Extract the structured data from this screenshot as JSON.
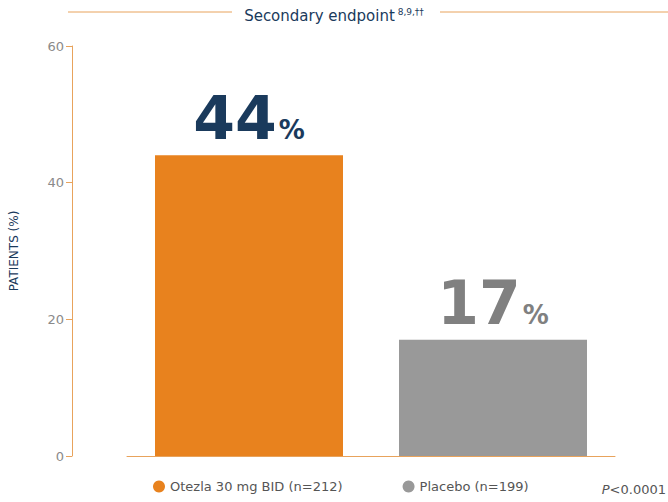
{
  "chart_data": {
    "type": "bar",
    "title": "Secondary endpoint",
    "title_note": "8,9,††",
    "y_label": "PATIENTS (%)",
    "categories": [
      "Otezla 30 mg BID (n=212)",
      "Placebo (n=199)"
    ],
    "values": [
      44,
      17
    ],
    "value_labels": [
      "44%",
      "17%"
    ],
    "colors": [
      "#e8821e",
      "#999999"
    ],
    "ylim": [
      0,
      60
    ],
    "yticks": [
      0,
      20,
      40,
      60
    ],
    "grid": false,
    "legend": "bottom",
    "data_labels": true,
    "tick_labels": "y",
    "annotations": [
      "P<0.0001"
    ]
  }
}
